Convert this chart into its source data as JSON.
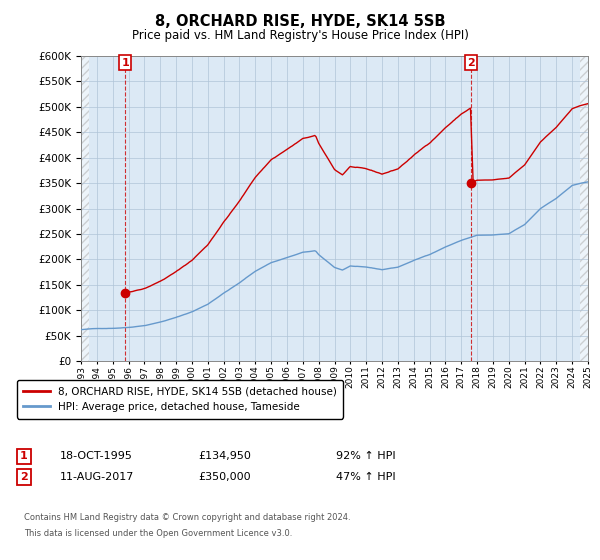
{
  "title": "8, ORCHARD RISE, HYDE, SK14 5SB",
  "subtitle": "Price paid vs. HM Land Registry's House Price Index (HPI)",
  "bg_color": "#ffffff",
  "plot_bg_color": "#dce9f5",
  "grid_color": "#b0c4d8",
  "sale1_date": "18-OCT-1995",
  "sale1_price": 134950,
  "sale1_hpi_text": "92% ↑ HPI",
  "sale1_year": 1995.79,
  "sale2_date": "11-AUG-2017",
  "sale2_price": 350000,
  "sale2_hpi_text": "47% ↑ HPI",
  "sale2_year": 2017.61,
  "red_color": "#cc0000",
  "blue_color": "#6699cc",
  "xlim": [
    1993,
    2025
  ],
  "ylim": [
    0,
    600000
  ],
  "legend_label_red": "8, ORCHARD RISE, HYDE, SK14 5SB (detached house)",
  "legend_label_blue": "HPI: Average price, detached house, Tameside",
  "footer1": "Contains HM Land Registry data © Crown copyright and database right 2024.",
  "footer2": "This data is licensed under the Open Government Licence v3.0."
}
